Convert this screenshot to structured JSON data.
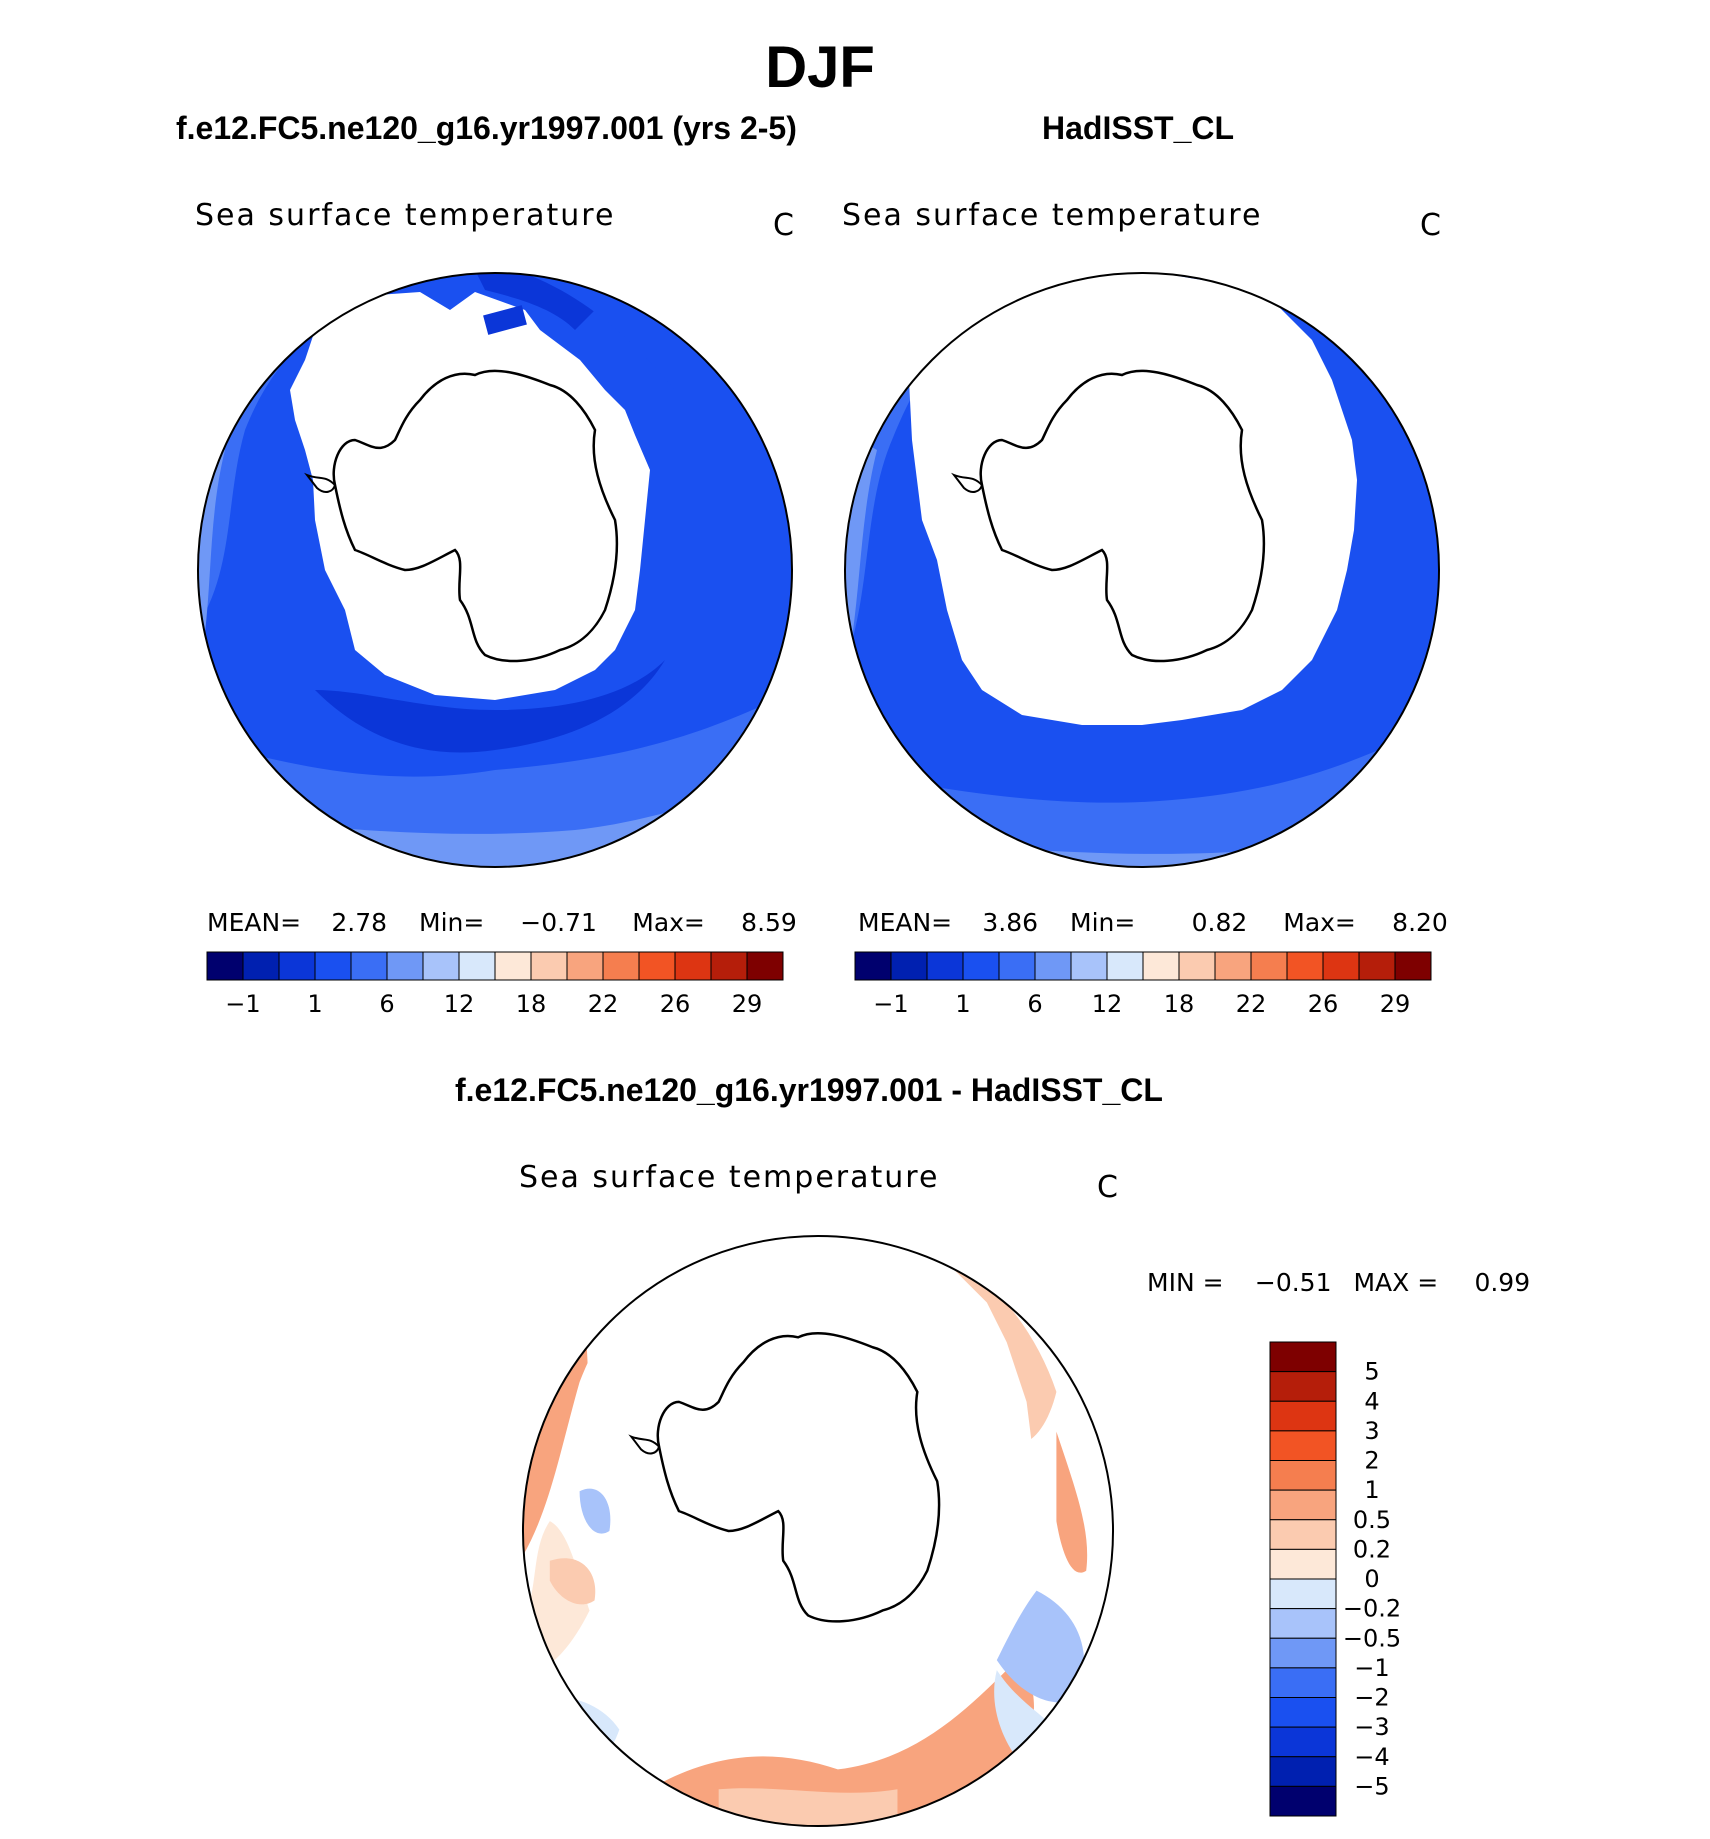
{
  "title": "DJF",
  "colors": {
    "ocean_palette": [
      "#00006e",
      "#0020b0",
      "#0b36d8",
      "#1a50f0",
      "#3a6ef5",
      "#6f98f6",
      "#a8c3fa",
      "#d8e8fb",
      "#fde8d8",
      "#fbcbb0",
      "#f8a47e",
      "#f57e4f",
      "#f25424",
      "#dd3512",
      "#b51e0a",
      "#7e0000"
    ],
    "diff_palette": [
      "#7e0000",
      "#b51e0a",
      "#dd3512",
      "#f25424",
      "#f57e4f",
      "#f8a47e",
      "#fbcbb0",
      "#fde8d8",
      "#d8e8fb",
      "#a8c3fa",
      "#6f98f6",
      "#3a6ef5",
      "#1a50f0",
      "#0b36d8",
      "#0020b0",
      "#00006e"
    ]
  },
  "panels": [
    {
      "case_title": "f.e12.FC5.ne120_g16.yr1997.001 (yrs 2-5)",
      "variable": "Sea surface temperature",
      "units": "C",
      "mean_label": "MEAN=",
      "mean": "2.78",
      "min_label": "Min=",
      "min": "−0.71",
      "max_label": "Max=",
      "max": "8.59",
      "colorbar_ticks": [
        "−1",
        "1",
        "6",
        "12",
        "18",
        "22",
        "26",
        "29"
      ]
    },
    {
      "case_title": "HadISST_CL",
      "variable": "Sea surface temperature",
      "units": "C",
      "mean_label": "MEAN=",
      "mean": "3.86",
      "min_label": "Min=",
      "min": "0.82",
      "max_label": "Max=",
      "max": "8.20",
      "colorbar_ticks": [
        "−1",
        "1",
        "6",
        "12",
        "18",
        "22",
        "26",
        "29"
      ]
    }
  ],
  "difference": {
    "case_title": "f.e12.FC5.ne120_g16.yr1997.001 - HadISST_CL",
    "variable": "Sea surface temperature",
    "units": "C",
    "min_label": "MIN =",
    "min": "−0.51",
    "max_label": "MAX =",
    "max": "0.99",
    "colorbar_ticks": [
      "5",
      "4",
      "3",
      "2",
      "1",
      "0.5",
      "0.2",
      "0",
      "−0.2",
      "−0.5",
      "−1",
      "−2",
      "−3",
      "−4",
      "−5"
    ]
  }
}
